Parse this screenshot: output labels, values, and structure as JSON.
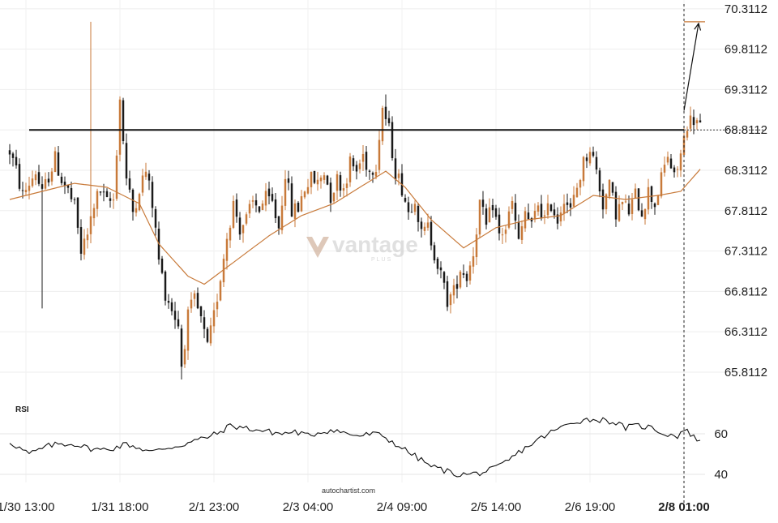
{
  "chart_data": {
    "type": "candlestick",
    "price_axis": {
      "ticks": [
        "70.3112",
        "69.8112",
        "69.3112",
        "68.8112",
        "68.3112",
        "67.8112",
        "67.3112",
        "66.8112",
        "66.3112",
        "65.8112"
      ],
      "ylim": [
        65.6,
        70.42
      ]
    },
    "time_axis": {
      "ticks": [
        {
          "label": "1/30 13:00",
          "bar": 5,
          "bold": false
        },
        {
          "label": "1/31 18:00",
          "bar": 34,
          "bold": false
        },
        {
          "label": "2/1 23:00",
          "bar": 63,
          "bold": false
        },
        {
          "label": "2/3 04:00",
          "bar": 92,
          "bold": false
        },
        {
          "label": "2/4 09:00",
          "bar": 121,
          "bold": false
        },
        {
          "label": "2/5 14:00",
          "bar": 150,
          "bold": false
        },
        {
          "label": "2/6 19:00",
          "bar": 179,
          "bold": false
        },
        {
          "label": "2/8 01:00",
          "bar": 208,
          "bold": true
        }
      ],
      "bar_count": 214
    },
    "ohlc_anchors": [
      [
        0,
        68.55
      ],
      [
        2,
        68.3
      ],
      [
        4,
        68.0
      ],
      [
        6,
        68.15
      ],
      [
        8,
        68.3
      ],
      [
        10,
        68.0
      ],
      [
        12,
        68.25
      ],
      [
        14,
        68.45
      ],
      [
        16,
        68.2
      ],
      [
        18,
        68.05
      ],
      [
        20,
        67.85
      ],
      [
        22,
        67.3
      ],
      [
        24,
        67.5
      ],
      [
        26,
        67.9
      ],
      [
        28,
        68.05
      ],
      [
        30,
        67.9
      ],
      [
        32,
        67.95
      ],
      [
        34,
        69.2
      ],
      [
        36,
        68.2
      ],
      [
        38,
        67.8
      ],
      [
        40,
        68.1
      ],
      [
        42,
        68.3
      ],
      [
        44,
        67.9
      ],
      [
        46,
        67.2
      ],
      [
        48,
        66.8
      ],
      [
        50,
        66.6
      ],
      [
        52,
        66.4
      ],
      [
        53,
        65.9
      ],
      [
        55,
        66.5
      ],
      [
        57,
        66.7
      ],
      [
        59,
        66.45
      ],
      [
        61,
        66.1
      ],
      [
        63,
        66.5
      ],
      [
        65,
        67.0
      ],
      [
        67,
        67.5
      ],
      [
        69,
        67.9
      ],
      [
        71,
        67.6
      ],
      [
        73,
        67.7
      ],
      [
        75,
        67.9
      ],
      [
        77,
        67.85
      ],
      [
        79,
        67.95
      ],
      [
        81,
        67.9
      ],
      [
        83,
        67.6
      ],
      [
        85,
        68.3
      ],
      [
        87,
        67.8
      ],
      [
        89,
        67.85
      ],
      [
        91,
        68.1
      ],
      [
        93,
        68.2
      ],
      [
        95,
        68.15
      ],
      [
        97,
        68.3
      ],
      [
        99,
        68.0
      ],
      [
        101,
        68.2
      ],
      [
        103,
        68.1
      ],
      [
        105,
        68.4
      ],
      [
        107,
        68.3
      ],
      [
        109,
        68.5
      ],
      [
        111,
        68.3
      ],
      [
        113,
        68.4
      ],
      [
        115,
        69.1
      ],
      [
        117,
        68.8
      ],
      [
        119,
        68.3
      ],
      [
        121,
        68.1
      ],
      [
        123,
        67.8
      ],
      [
        125,
        68.0
      ],
      [
        127,
        67.5
      ],
      [
        129,
        67.6
      ],
      [
        131,
        67.3
      ],
      [
        133,
        67.0
      ],
      [
        135,
        66.7
      ],
      [
        137,
        66.8
      ],
      [
        139,
        67.1
      ],
      [
        141,
        67.0
      ],
      [
        143,
        67.3
      ],
      [
        145,
        67.9
      ],
      [
        147,
        67.6
      ],
      [
        149,
        67.9
      ],
      [
        151,
        67.5
      ],
      [
        153,
        67.6
      ],
      [
        155,
        67.9
      ],
      [
        157,
        67.4
      ],
      [
        159,
        67.8
      ],
      [
        161,
        67.6
      ],
      [
        163,
        67.9
      ],
      [
        165,
        67.7
      ],
      [
        167,
        67.9
      ],
      [
        169,
        67.7
      ],
      [
        171,
        68.0
      ],
      [
        173,
        67.8
      ],
      [
        175,
        68.1
      ],
      [
        177,
        68.4
      ],
      [
        179,
        68.6
      ],
      [
        181,
        68.3
      ],
      [
        183,
        67.9
      ],
      [
        185,
        68.1
      ],
      [
        187,
        67.8
      ],
      [
        189,
        67.9
      ],
      [
        191,
        67.8
      ],
      [
        193,
        68.0
      ],
      [
        195,
        67.8
      ],
      [
        197,
        68.05
      ],
      [
        199,
        67.9
      ],
      [
        201,
        68.2
      ],
      [
        203,
        68.5
      ],
      [
        205,
        68.2
      ],
      [
        207,
        68.5
      ],
      [
        209,
        68.9
      ],
      [
        211,
        68.95
      ],
      [
        213,
        68.85
      ]
    ],
    "spikes": [
      {
        "bar": 10,
        "low": 66.6
      },
      {
        "bar": 25,
        "high": 70.15
      },
      {
        "bar": 53,
        "low": 65.72
      },
      {
        "bar": 116,
        "high": 69.25
      }
    ],
    "moving_average": {
      "values_at": [
        [
          0,
          67.95
        ],
        [
          10,
          68.05
        ],
        [
          20,
          68.15
        ],
        [
          30,
          68.1
        ],
        [
          40,
          67.9
        ],
        [
          46,
          67.4
        ],
        [
          55,
          67.0
        ],
        [
          60,
          66.9
        ],
        [
          70,
          67.2
        ],
        [
          80,
          67.5
        ],
        [
          90,
          67.75
        ],
        [
          100,
          67.9
        ],
        [
          110,
          68.15
        ],
        [
          116,
          68.3
        ],
        [
          122,
          68.1
        ],
        [
          130,
          67.7
        ],
        [
          140,
          67.35
        ],
        [
          150,
          67.6
        ],
        [
          160,
          67.7
        ],
        [
          170,
          67.75
        ],
        [
          180,
          68.0
        ],
        [
          190,
          67.95
        ],
        [
          200,
          68.0
        ],
        [
          207,
          68.05
        ],
        [
          214,
          68.37
        ]
      ]
    },
    "resistance_level": 68.8112,
    "projection": {
      "target": 70.15
    },
    "current_price": 68.8112,
    "rsi": {
      "title": "RSI",
      "ticks": [
        "60",
        "40"
      ],
      "ylim": [
        36,
        72
      ],
      "values_at": [
        [
          0,
          56
        ],
        [
          6,
          50
        ],
        [
          9,
          52
        ],
        [
          12,
          54
        ],
        [
          15,
          55
        ],
        [
          20,
          55
        ],
        [
          24,
          53
        ],
        [
          28,
          52
        ],
        [
          32,
          53
        ],
        [
          36,
          55
        ],
        [
          40,
          53
        ],
        [
          44,
          51
        ],
        [
          48,
          53
        ],
        [
          52,
          54
        ],
        [
          56,
          56
        ],
        [
          60,
          58
        ],
        [
          64,
          60
        ],
        [
          68,
          64
        ],
        [
          72,
          63
        ],
        [
          76,
          62
        ],
        [
          80,
          61
        ],
        [
          84,
          60
        ],
        [
          88,
          61
        ],
        [
          92,
          59
        ],
        [
          96,
          61
        ],
        [
          100,
          62
        ],
        [
          104,
          60
        ],
        [
          108,
          59
        ],
        [
          112,
          60
        ],
        [
          115,
          59
        ],
        [
          118,
          56
        ],
        [
          122,
          52
        ],
        [
          126,
          48
        ],
        [
          130,
          44
        ],
        [
          134,
          42
        ],
        [
          138,
          40
        ],
        [
          142,
          40
        ],
        [
          146,
          41
        ],
        [
          150,
          43
        ],
        [
          154,
          47
        ],
        [
          158,
          52
        ],
        [
          162,
          56
        ],
        [
          166,
          60
        ],
        [
          170,
          63
        ],
        [
          174,
          66
        ],
        [
          178,
          67
        ],
        [
          182,
          67
        ],
        [
          186,
          66
        ],
        [
          190,
          63
        ],
        [
          194,
          64
        ],
        [
          198,
          63
        ],
        [
          202,
          60
        ],
        [
          206,
          59
        ],
        [
          208,
          62
        ],
        [
          211,
          59
        ],
        [
          214,
          54
        ]
      ]
    }
  },
  "watermark": {
    "brand": "vantage",
    "sub": "PLUS"
  },
  "credit": "autochartist.com",
  "colors": {
    "up": "#c87a3a",
    "down": "#1a1a1a",
    "ma": "#c87a3a",
    "level": "#111111",
    "rsi": "#111111",
    "target": "#c87a3a"
  }
}
